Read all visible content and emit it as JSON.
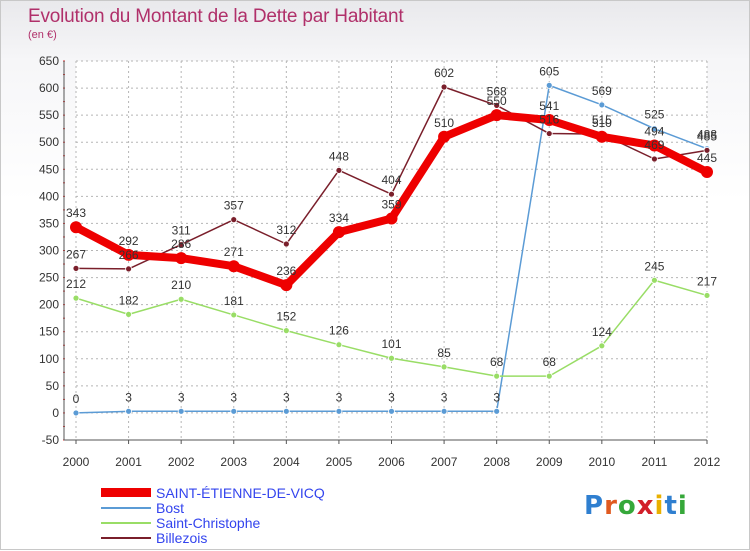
{
  "header": {
    "title": "Evolution du Montant de la Dette par Habitant",
    "subtitle": "(en €)"
  },
  "logo": {
    "text": "Proxiti",
    "colors": [
      "#2f7fd0",
      "#e05a20",
      "#36a83a",
      "#d21f2a",
      "#e9b000",
      "#2f7fd0",
      "#36a83a"
    ]
  },
  "chart_data": {
    "type": "line",
    "title": "Evolution du Montant de la Dette par Habitant",
    "subtitle": "(en €)",
    "xlabel": "",
    "ylabel": "",
    "x": [
      "2000",
      "2001",
      "2002",
      "2003",
      "2004",
      "2005",
      "2006",
      "2007",
      "2008",
      "2009",
      "2010",
      "2011",
      "2012"
    ],
    "ylim": [
      -50,
      650
    ],
    "yticks": [
      -50,
      0,
      50,
      100,
      150,
      200,
      250,
      300,
      350,
      400,
      450,
      500,
      550,
      600,
      650
    ],
    "grid": true,
    "legend_position": "bottom-left",
    "series": [
      {
        "name": "SAINT-ÉTIENNE-DE-VICQ",
        "color": "#ee0000",
        "values": [
          343,
          292,
          286,
          271,
          236,
          334,
          359,
          510,
          550,
          541,
          510,
          494,
          445
        ]
      },
      {
        "name": "Bost",
        "color": "#5b9bd5",
        "values": [
          0,
          3,
          3,
          3,
          3,
          3,
          3,
          3,
          3,
          605,
          569,
          525,
          488
        ]
      },
      {
        "name": "Saint-Christophe",
        "color": "#99dd66",
        "values": [
          212,
          182,
          210,
          181,
          152,
          126,
          101,
          85,
          68,
          68,
          124,
          245,
          217
        ]
      },
      {
        "name": "Billezois",
        "color": "#7a1f2b",
        "values": [
          267,
          266,
          311,
          357,
          312,
          448,
          404,
          602,
          568,
          516,
          515,
          469,
          485
        ]
      }
    ]
  }
}
